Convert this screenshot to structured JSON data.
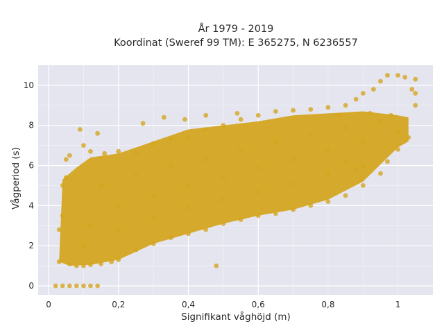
{
  "chart_data": {
    "type": "scatter",
    "title_line1": "År 1979 - 2019",
    "title_line2": "Koordinat (Sweref 99 TM): E 365275, N 6236557",
    "xlabel": "Signifikant våghöjd (m)",
    "ylabel": "Vågperiod (s)",
    "xlim": [
      -0.03,
      1.1
    ],
    "ylim": [
      -0.45,
      11.0
    ],
    "x_ticks": [
      0,
      0.2,
      0.4,
      0.6,
      0.8,
      1
    ],
    "x_tick_labels": [
      "0",
      "0,2",
      "0,4",
      "0,6",
      "0,8",
      "1"
    ],
    "y_ticks": [
      0,
      2,
      4,
      6,
      8,
      10
    ],
    "y_tick_labels": [
      "0",
      "2",
      "4",
      "6",
      "8",
      "10"
    ],
    "grid": true,
    "plot_background": "#e5e5ef",
    "marker_color": "#d4a520",
    "series": [
      {
        "points": [
          [
            0.02,
            0.0
          ],
          [
            0.04,
            0.0
          ],
          [
            0.06,
            0.0
          ],
          [
            0.08,
            0.0
          ],
          [
            0.1,
            0.0
          ],
          [
            0.12,
            0.0
          ],
          [
            0.14,
            0.0
          ],
          [
            0.03,
            1.2
          ],
          [
            0.03,
            2.8
          ],
          [
            0.04,
            3.5
          ],
          [
            0.04,
            5.0
          ],
          [
            0.05,
            5.4
          ],
          [
            0.05,
            6.3
          ],
          [
            0.06,
            6.5
          ],
          [
            0.06,
            1.1
          ],
          [
            0.08,
            1.0
          ],
          [
            0.1,
            1.0
          ],
          [
            0.12,
            1.05
          ],
          [
            0.15,
            1.1
          ],
          [
            0.18,
            1.2
          ],
          [
            0.09,
            7.8
          ],
          [
            0.14,
            7.6
          ],
          [
            0.1,
            7.0
          ],
          [
            0.12,
            6.7
          ],
          [
            0.16,
            6.6
          ],
          [
            0.2,
            6.7
          ],
          [
            0.25,
            6.6
          ],
          [
            0.3,
            7.1
          ],
          [
            0.35,
            7.3
          ],
          [
            0.4,
            7.4
          ],
          [
            0.45,
            7.8
          ],
          [
            0.5,
            8.0
          ],
          [
            0.55,
            8.3
          ],
          [
            0.6,
            8.5
          ],
          [
            0.65,
            8.7
          ],
          [
            0.7,
            8.75
          ],
          [
            0.75,
            8.8
          ],
          [
            0.8,
            8.9
          ],
          [
            0.85,
            9.0
          ],
          [
            0.88,
            9.3
          ],
          [
            0.9,
            9.6
          ],
          [
            0.93,
            9.8
          ],
          [
            0.95,
            10.2
          ],
          [
            0.97,
            10.5
          ],
          [
            1.0,
            10.5
          ],
          [
            1.02,
            10.4
          ],
          [
            1.05,
            10.3
          ],
          [
            1.04,
            9.8
          ],
          [
            1.05,
            9.6
          ],
          [
            1.05,
            9.0
          ],
          [
            0.39,
            8.3
          ],
          [
            0.45,
            8.5
          ],
          [
            0.54,
            8.6
          ],
          [
            0.27,
            8.1
          ],
          [
            0.33,
            8.4
          ],
          [
            0.2,
            1.3
          ],
          [
            0.25,
            1.8
          ],
          [
            0.3,
            2.1
          ],
          [
            0.35,
            2.4
          ],
          [
            0.4,
            2.6
          ],
          [
            0.45,
            2.8
          ],
          [
            0.5,
            3.1
          ],
          [
            0.55,
            3.3
          ],
          [
            0.6,
            3.5
          ],
          [
            0.65,
            3.6
          ],
          [
            0.7,
            3.8
          ],
          [
            0.75,
            4.0
          ],
          [
            0.8,
            4.2
          ],
          [
            0.85,
            4.5
          ],
          [
            0.9,
            5.0
          ],
          [
            0.95,
            5.6
          ],
          [
            1.0,
            6.8
          ],
          [
            1.03,
            7.4
          ],
          [
            0.48,
            1.0
          ],
          [
            0.9,
            6.0
          ],
          [
            0.97,
            6.2
          ],
          [
            0.88,
            5.8
          ],
          [
            0.85,
            6.2
          ],
          [
            0.12,
            3.0
          ],
          [
            0.2,
            4.0
          ],
          [
            0.3,
            4.5
          ],
          [
            0.4,
            5.0
          ],
          [
            0.5,
            5.4
          ],
          [
            0.6,
            5.9
          ],
          [
            0.7,
            6.3
          ],
          [
            0.8,
            6.8
          ],
          [
            0.9,
            7.2
          ],
          [
            1.0,
            7.7
          ],
          [
            0.1,
            2.0
          ],
          [
            0.2,
            2.8
          ],
          [
            0.3,
            3.4
          ],
          [
            0.4,
            3.9
          ],
          [
            0.5,
            4.3
          ],
          [
            0.6,
            4.7
          ],
          [
            0.7,
            5.1
          ],
          [
            0.8,
            5.6
          ],
          [
            0.15,
            5.0
          ],
          [
            0.25,
            5.5
          ],
          [
            0.35,
            6.0
          ],
          [
            0.45,
            6.3
          ],
          [
            0.55,
            6.8
          ],
          [
            0.65,
            7.2
          ],
          [
            0.75,
            7.5
          ],
          [
            0.85,
            7.9
          ],
          [
            0.95,
            8.2
          ],
          [
            0.98,
            8.5
          ],
          [
            0.92,
            8.6
          ],
          [
            0.83,
            8.5
          ]
        ]
      }
    ]
  }
}
